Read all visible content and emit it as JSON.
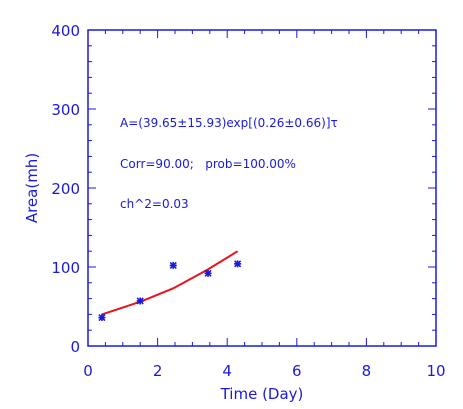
{
  "chart_data": {
    "type": "scatter",
    "xlabel": "Time (Day)",
    "ylabel": "Area(mh)",
    "xlim": [
      0,
      10
    ],
    "ylim": [
      0,
      400
    ],
    "x_ticks": [
      0,
      2,
      4,
      6,
      8,
      10
    ],
    "y_ticks": [
      0,
      100,
      200,
      300,
      400
    ],
    "x_tick_labels": [
      "0",
      "2",
      "4",
      "6",
      "8",
      "10"
    ],
    "y_tick_labels": [
      "0",
      "100",
      "200",
      "300",
      "400"
    ],
    "grid": false,
    "series": [
      {
        "type": "scatter",
        "marker": "asterisk",
        "color": "#1a1adb",
        "x": [
          0.4,
          1.5,
          2.45,
          3.45,
          4.3
        ],
        "y": [
          36,
          57,
          102,
          92,
          104
        ]
      },
      {
        "type": "line",
        "color": "#e8141e",
        "x": [
          0.4,
          1.5,
          2.45,
          3.45,
          4.3
        ],
        "y": [
          40,
          56,
          73,
          97,
          120
        ]
      }
    ],
    "annotations": [
      "A=(39.65±15.93)exp[(0.26±0.66)]τ",
      "Corr=90.00;   prob=100.00%",
      "ch^2=0.03"
    ],
    "colors": {
      "axis": "#1a1adb",
      "fit": "#e8141e",
      "points": "#1a1adb"
    }
  }
}
